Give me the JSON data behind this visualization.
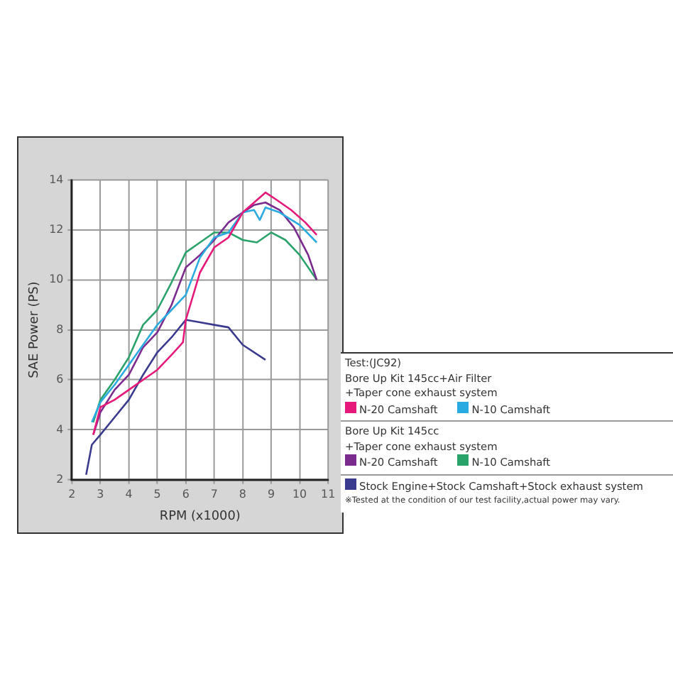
{
  "chart_data": {
    "type": "line",
    "xlabel": "RPM (x1000)",
    "ylabel": "SAE Power (PS)",
    "xlim": [
      2,
      11
    ],
    "xticks": [
      2,
      3,
      4,
      5,
      6,
      7,
      8,
      9,
      10,
      11
    ],
    "ylim": [
      2,
      14
    ],
    "yticks": [
      2,
      4,
      6,
      8,
      10,
      12,
      14
    ],
    "grid": true,
    "legend": "right",
    "marker": "none",
    "line_style": "solid",
    "annotations": [
      "Test:(JC92)",
      "Bore Up Kit 145cc+Air Filter",
      "+Taper cone exhaust system",
      "Bore Up Kit 145cc",
      "+Taper cone exhaust system",
      "※Tested at the condition of our test facility,actual power may vary."
    ],
    "series": [
      {
        "name": "N-20 Camshaft",
        "color": "#e6197a",
        "x": [
          2.75,
          3,
          3.5,
          4,
          4.5,
          5,
          5.5,
          5.9,
          6,
          6.5,
          7,
          7.5,
          8,
          8.5,
          8.8,
          9.2,
          9.7,
          10.2,
          10.6
        ],
        "values": [
          3.8,
          4.9,
          5.2,
          5.6,
          6.0,
          6.4,
          7.0,
          7.5,
          8.4,
          10.3,
          11.3,
          11.7,
          12.7,
          13.2,
          13.5,
          13.2,
          12.8,
          12.3,
          11.8
        ]
      },
      {
        "name": "N-10 Camshaft",
        "color": "#29abe2",
        "x": [
          2.7,
          3,
          3.5,
          4,
          4.5,
          5,
          5.5,
          6,
          6.5,
          7,
          7.5,
          8,
          8.4,
          8.6,
          8.8,
          9.3,
          10,
          10.6
        ],
        "values": [
          4.3,
          5.1,
          5.8,
          6.6,
          7.4,
          8.2,
          8.8,
          9.4,
          10.9,
          11.7,
          11.9,
          12.7,
          12.8,
          12.4,
          12.9,
          12.7,
          12.2,
          11.5
        ]
      },
      {
        "name": "N-20 Camshaft",
        "color": "#7b2a8e",
        "x": [
          2.75,
          3,
          3.5,
          4,
          4.5,
          5,
          5.5,
          6,
          6.5,
          7,
          7.5,
          8,
          8.4,
          8.8,
          9.3,
          9.8,
          10.3,
          10.6
        ],
        "values": [
          3.8,
          4.7,
          5.6,
          6.2,
          7.3,
          7.9,
          9.0,
          10.5,
          11.0,
          11.6,
          12.3,
          12.7,
          13.0,
          13.1,
          12.8,
          12.1,
          11.0,
          10.0
        ]
      },
      {
        "name": "N-10 Camshaft",
        "color": "#2aa36b",
        "x": [
          2.75,
          3,
          3.5,
          4,
          4.5,
          5,
          5.5,
          6,
          6.5,
          7,
          7.5,
          8,
          8.5,
          9,
          9.5,
          10,
          10.6
        ],
        "values": [
          4.3,
          5.2,
          6.0,
          6.9,
          8.2,
          8.8,
          9.9,
          11.1,
          11.5,
          11.9,
          11.9,
          11.6,
          11.5,
          11.9,
          11.6,
          11.0,
          10.0
        ]
      },
      {
        "name": "Stock Engine+Stock Camshaft+Stock exhaust system",
        "color": "#3a3a8f",
        "x": [
          2.5,
          2.7,
          3,
          3.5,
          4,
          4.5,
          5,
          5.5,
          6,
          6.5,
          7,
          7.5,
          8,
          8.8
        ],
        "values": [
          2.2,
          3.4,
          3.8,
          4.5,
          5.2,
          6.2,
          7.1,
          7.7,
          8.4,
          8.3,
          8.2,
          8.1,
          7.4,
          6.8
        ]
      }
    ]
  }
}
